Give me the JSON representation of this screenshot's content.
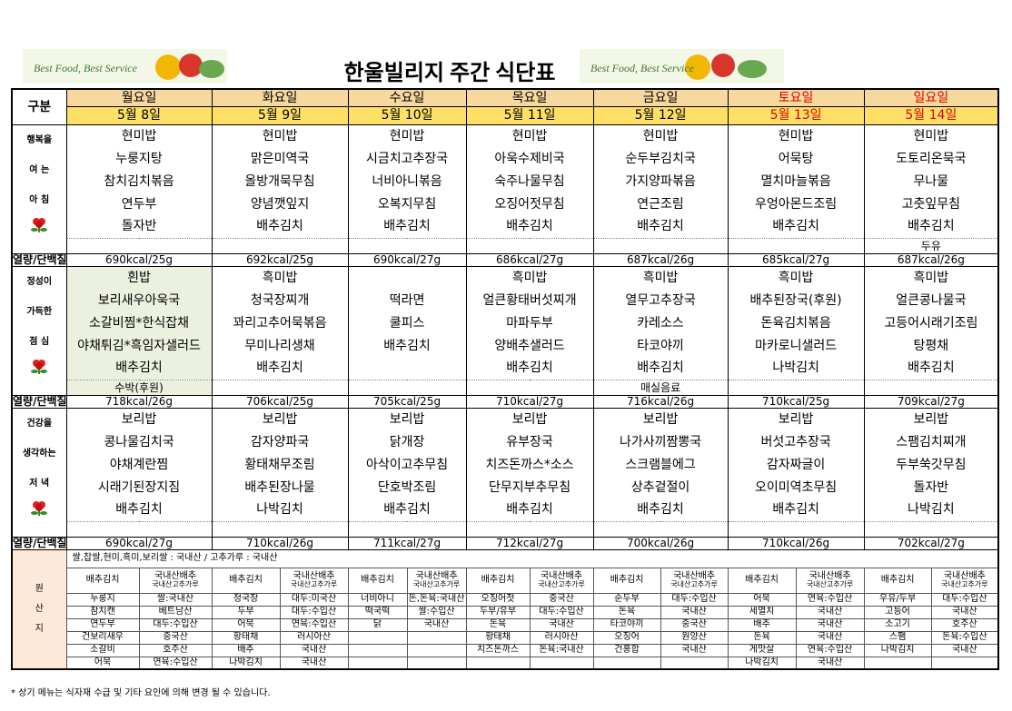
{
  "title": "한울빌리지 주간 식단표",
  "banner": "Best Food, Best Service",
  "header_label": "구분",
  "days": [
    {
      "name": "월요일",
      "date": "5월 8일",
      "color": "#000000"
    },
    {
      "name": "화요일",
      "date": "5월 9일",
      "color": "#000000"
    },
    {
      "name": "수요일",
      "date": "5월 10일",
      "color": "#000000"
    },
    {
      "name": "목요일",
      "date": "5월 11일",
      "color": "#000000"
    },
    {
      "name": "금요일",
      "date": "5월 12일",
      "color": "#000000"
    },
    {
      "name": "토요일",
      "date": "5월 13일",
      "color": "#e00000"
    },
    {
      "name": "일요일",
      "date": "5월 14일",
      "color": "#e00000"
    }
  ],
  "meals": [
    {
      "label": [
        "행복을",
        "여 는",
        "아 침"
      ],
      "kcal_label": "열량/단백질",
      "menu": [
        [
          "현미밥",
          "누룽지탕",
          "참치김치볶음",
          "연두부",
          "돌자반"
        ],
        [
          "현미밥",
          "맑은미역국",
          "올방개묵무침",
          "양념깻잎지",
          "배추김치"
        ],
        [
          "현미밥",
          "시금치고추장국",
          "너비아니볶음",
          "오복지무침",
          "배추김치"
        ],
        [
          "현미밥",
          "아욱수제비국",
          "숙주나물무침",
          "오징어젓무침",
          "배추김치"
        ],
        [
          "현미밥",
          "순두부김치국",
          "가지양파볶음",
          "연근조림",
          "배추김치"
        ],
        [
          "현미밥",
          "어묵탕",
          "멸치마늘볶음",
          "우엉아몬드조림",
          "배추김치"
        ],
        [
          "현미밥",
          "도토리온묵국",
          "무나물",
          "고춧잎무침",
          "배추김치"
        ]
      ],
      "extra": [
        null,
        null,
        null,
        null,
        null,
        null,
        "두유"
      ],
      "kcal": [
        "690kcal/25g",
        "692kcal/25g",
        "690kcal/27g",
        "686kcal/27g",
        "687kcal/26g",
        "685kcal/27g",
        "687kcal/26g"
      ]
    },
    {
      "label": [
        "정성이",
        "가득한",
        "점 심"
      ],
      "kcal_label": "열량/단백질",
      "menu": [
        [
          "흰밥",
          "보리새우아욱국",
          "소갈비찜*한식잡채",
          "야채튀김*흑임자샐러드",
          "배추김치"
        ],
        [
          "흑미밥",
          "청국장찌개",
          "꽈리고추어묵볶음",
          "무미나리생채",
          "배추김치"
        ],
        [
          null,
          "떡라면",
          "쿨피스",
          "배추김치",
          null
        ],
        [
          "흑미밥",
          "얼큰황태버섯찌개",
          "마파두부",
          "양배추샐러드",
          "배추김치"
        ],
        [
          "흑미밥",
          "열무고추장국",
          "카레소스",
          "타코야끼",
          "배추김치"
        ],
        [
          "흑미밥",
          "배추된장국(후원)",
          "돈육김치볶음",
          "마카로니샐러드",
          "나박김치"
        ],
        [
          "흑미밥",
          "얼큰콩나물국",
          "고등어시래기조림",
          "탕평채",
          "배추김치"
        ]
      ],
      "extra": [
        "수박(후원)",
        null,
        null,
        null,
        "매실음료",
        null,
        null
      ],
      "kcal": [
        "718kcal/26g",
        "706kcal/25g",
        "705kcal/25g",
        "710kcal/27g",
        "716kcal/26g",
        "710kcal/25g",
        "709kcal/27g"
      ]
    },
    {
      "label": [
        "건강을",
        "생각하는",
        "저 녁"
      ],
      "kcal_label": "열량/단백질",
      "menu": [
        [
          "보리밥",
          "콩나물김치국",
          "야채계란찜",
          "시래기된장지짐",
          "배추김치"
        ],
        [
          "보리밥",
          "감자양파국",
          "황태채무조림",
          "배추된장나물",
          "나박김치"
        ],
        [
          "보리밥",
          "닭개장",
          "아삭이고추무침",
          "단호박조림",
          "배추김치"
        ],
        [
          "보리밥",
          "유부장국",
          "치즈돈까스*소스",
          "단무지부추무침",
          "배추김치"
        ],
        [
          "보리밥",
          "나가사끼짬뽕국",
          "스크램블에그",
          "상추겉절이",
          "배추김치"
        ],
        [
          "보리밥",
          "버섯고추장국",
          "감자짜글이",
          "오이미역초무침",
          "배추김치"
        ],
        [
          "보리밥",
          "스팸김치찌개",
          "두부쑥갓무침",
          "돌자반",
          "나박김치"
        ]
      ],
      "extra": [
        null,
        null,
        null,
        null,
        null,
        null,
        null
      ],
      "kcal": [
        "690kcal/27g",
        "710kcal/26g",
        "711kcal/27g",
        "712kcal/27g",
        "700kcal/26g",
        "710kcal/26g",
        "702kcal/27g"
      ]
    }
  ],
  "origin": {
    "label": [
      "원",
      "산",
      "지"
    ],
    "general": "쌀,찹쌀,현미,흑미,보리쌀 : 국내산 / 고추가루 : 국내산",
    "headers": [
      {
        "item": "배추김치",
        "origin": [
          "국내산배추",
          "국내산고추가루"
        ]
      },
      {
        "item": "배추김치",
        "origin": [
          "국내산배추",
          "국내산고추가루"
        ]
      },
      {
        "item": "배추김치",
        "origin": [
          "국내산배추",
          "국내산고추가루"
        ]
      },
      {
        "item": "배추김치",
        "origin": [
          "국내산배추",
          "국내산고추가루"
        ]
      },
      {
        "item": "배추김치",
        "origin": [
          "국내산배추",
          "국내산고추가루"
        ]
      },
      {
        "item": "배추김치",
        "origin": [
          "국내산배추",
          "국내산고추가루"
        ]
      },
      {
        "item": "배추김치",
        "origin": [
          "국내산배추",
          "국내산고추가루"
        ]
      }
    ],
    "rows": [
      [
        "누룽지",
        "쌀:국내산",
        "청국장",
        "대두:미국산",
        "너비아니",
        "돈,돈육:국내산",
        "오징어젓",
        "중국산",
        "순두부",
        "대두:수입산",
        "어묵",
        "연육:수입산",
        "우유/두부",
        "대두:수입산"
      ],
      [
        "참치캔",
        "베트남산",
        "두부",
        "대두:수입산",
        "떡국떡",
        "쌀:수입산",
        "두부/유부",
        "대두:수입산",
        "돈육",
        "국내산",
        "세멸치",
        "국내산",
        "고등어",
        "국내산"
      ],
      [
        "연두부",
        "대두:수입산",
        "어묵",
        "연육:수입산",
        "닭",
        "국내산",
        "돈육",
        "국내산",
        "타코야끼",
        "중국산",
        "배추",
        "국내산",
        "소고기",
        "호주산"
      ],
      [
        "건보리새우",
        "중국산",
        "황태채",
        "러시아산",
        null,
        null,
        "황태채",
        "러시아산",
        "오징어",
        "원양산",
        "돈육",
        "국내산",
        "스팸",
        "돈육:수입산"
      ],
      [
        "소갈비",
        "호주산",
        "배추",
        "국내산",
        null,
        null,
        "치즈돈까스",
        "돈육:국내산",
        "건홍합",
        "국내산",
        "게맛살",
        "연육:수입산",
        "나박김치",
        "국내산"
      ],
      [
        "어묵",
        "연육:수입산",
        "나박김치",
        "국내산",
        null,
        null,
        null,
        null,
        null,
        null,
        "나박김치",
        "국내산",
        null,
        null
      ]
    ]
  },
  "footer": "* 상기 메뉴는 식자재 수급 및 기타 요인에 의해 변경 될 수 있습니다."
}
